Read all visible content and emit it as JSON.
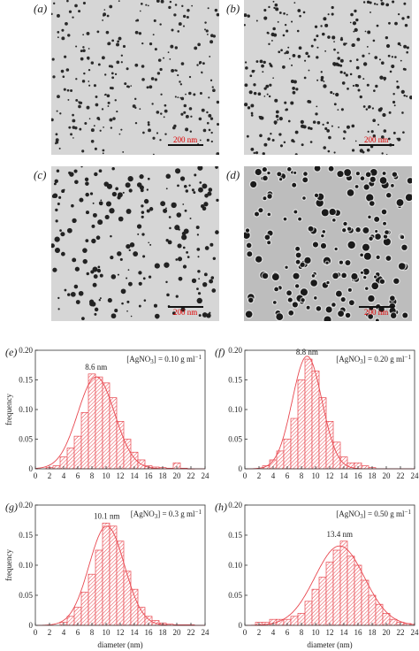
{
  "tem_panels": [
    {
      "label": "(a)",
      "scale": "200 nm"
    },
    {
      "label": "(b)",
      "scale": "200 nm"
    },
    {
      "label": "(c)",
      "scale": "200 nm"
    },
    {
      "label": "(d)",
      "scale": "200 nm"
    }
  ],
  "chart_data": [
    {
      "type": "bar",
      "panel": "(e)",
      "annotation": "[AgNO",
      "annotation_sub": "3",
      "annotation_end": "] = 0.10 g ml",
      "annotation_sup": "−1",
      "peak_label": "8.6 nm",
      "peak": 8.6,
      "xlabel": "",
      "ylabel": "frequency",
      "xlim": [
        0,
        24
      ],
      "ylim": [
        0,
        0.2
      ],
      "xticks": [
        "0",
        "2",
        "4",
        "6",
        "8",
        "10",
        "12",
        "14",
        "16",
        "18",
        "20",
        "22",
        "24"
      ],
      "yticks": [
        "0",
        "0.05",
        "0.10",
        "0.15",
        "0.20"
      ],
      "bin_width": 1,
      "x": [
        2,
        3,
        4,
        5,
        6,
        7,
        8,
        9,
        10,
        11,
        12,
        13,
        14,
        15,
        16,
        17,
        18,
        19,
        20,
        21,
        22
      ],
      "values": [
        0.002,
        0.005,
        0.02,
        0.035,
        0.055,
        0.095,
        0.16,
        0.155,
        0.145,
        0.12,
        0.08,
        0.05,
        0.028,
        0.015,
        0.005,
        0.003,
        0.002,
        0.001,
        0.01,
        0.001,
        0.0
      ],
      "fit_mean": 8.6,
      "fit_sd": 2.6,
      "fit_peak": 0.155
    },
    {
      "type": "bar",
      "panel": "(f)",
      "annotation": "[AgNO",
      "annotation_sub": "3",
      "annotation_end": "] = 0.20 g ml",
      "annotation_sup": "−1",
      "peak_label": "8.8 nm",
      "peak": 8.8,
      "xlabel": "",
      "ylabel": "",
      "xlim": [
        0,
        24
      ],
      "ylim": [
        0,
        0.2
      ],
      "xticks": [
        "0",
        "2",
        "4",
        "6",
        "8",
        "10",
        "12",
        "14",
        "16",
        "18",
        "20",
        "22",
        "24"
      ],
      "yticks": [
        "0",
        "0.05",
        "0.10",
        "0.15",
        "0.20"
      ],
      "bin_width": 1,
      "x": [
        3,
        4,
        5,
        6,
        7,
        8,
        9,
        10,
        11,
        12,
        13,
        14,
        15,
        16,
        17,
        18
      ],
      "values": [
        0.005,
        0.015,
        0.03,
        0.05,
        0.085,
        0.15,
        0.185,
        0.165,
        0.12,
        0.08,
        0.045,
        0.02,
        0.01,
        0.01,
        0.005,
        0.002
      ],
      "fit_mean": 8.8,
      "fit_sd": 2.1,
      "fit_peak": 0.19
    },
    {
      "type": "bar",
      "panel": "(g)",
      "annotation": "[AgNO",
      "annotation_sub": "3",
      "annotation_end": "] = 0.3 g ml",
      "annotation_sup": "−1",
      "peak_label": "10.1 nm",
      "peak": 10.1,
      "xlabel": "diameter (nm)",
      "ylabel": "frequency",
      "xlim": [
        0,
        24
      ],
      "ylim": [
        0,
        0.2
      ],
      "xticks": [
        "0",
        "2",
        "4",
        "6",
        "8",
        "10",
        "12",
        "14",
        "16",
        "18",
        "20",
        "22",
        "24"
      ],
      "yticks": [
        "0",
        "0.05",
        "0.10",
        "0.15",
        "0.20"
      ],
      "bin_width": 1,
      "x": [
        4,
        5,
        6,
        7,
        8,
        9,
        10,
        11,
        12,
        13,
        14,
        15,
        16,
        17,
        18,
        19,
        20,
        21,
        22
      ],
      "values": [
        0.005,
        0.015,
        0.03,
        0.055,
        0.085,
        0.125,
        0.17,
        0.165,
        0.14,
        0.09,
        0.06,
        0.03,
        0.015,
        0.008,
        0.004,
        0.002,
        0.001,
        0.001,
        0.001
      ],
      "fit_mean": 10.1,
      "fit_sd": 2.5,
      "fit_peak": 0.165
    },
    {
      "type": "bar",
      "panel": "(h)",
      "annotation": "[AgNO",
      "annotation_sub": "3",
      "annotation_end": "] = 0.50 g ml",
      "annotation_sup": "−1",
      "peak_label": "13.4 nm",
      "peak": 13.4,
      "xlabel": "diameter (nm)",
      "ylabel": "",
      "xlim": [
        0,
        24
      ],
      "ylim": [
        0,
        0.2
      ],
      "xticks": [
        "0",
        "2",
        "4",
        "6",
        "8",
        "10",
        "12",
        "14",
        "16",
        "18",
        "20",
        "22",
        "24"
      ],
      "yticks": [
        "0",
        "0.05",
        "0.10",
        "0.15",
        "0.20"
      ],
      "bin_width": 1,
      "x": [
        2,
        3,
        4,
        5,
        6,
        7,
        8,
        9,
        10,
        11,
        12,
        13,
        14,
        15,
        16,
        17,
        18,
        19,
        20,
        21,
        22,
        23
      ],
      "values": [
        0.005,
        0.005,
        0.01,
        0.01,
        0.01,
        0.015,
        0.02,
        0.04,
        0.06,
        0.08,
        0.105,
        0.125,
        0.14,
        0.115,
        0.1,
        0.075,
        0.05,
        0.035,
        0.02,
        0.01,
        0.005,
        0.003
      ],
      "fit_mean": 13.4,
      "fit_sd": 3.5,
      "fit_peak": 0.132
    }
  ]
}
